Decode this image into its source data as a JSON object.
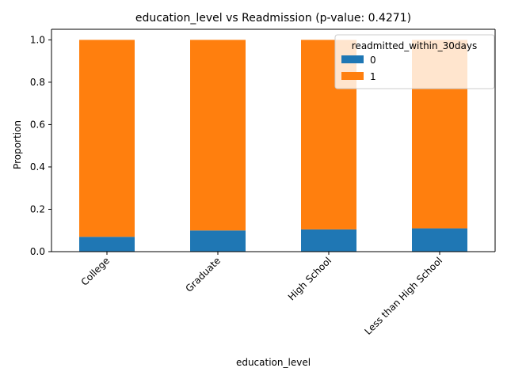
{
  "chart_data": {
    "type": "bar",
    "stacked": true,
    "title": "education_level vs Readmission (p-value: 0.4271)",
    "xlabel": "education_level",
    "ylabel": "Proportion",
    "categories": [
      "College",
      "Graduate",
      "High School",
      "Less than High School"
    ],
    "series": [
      {
        "name": "0",
        "values": [
          0.07,
          0.1,
          0.105,
          0.11
        ],
        "color": "#1f77b4"
      },
      {
        "name": "1",
        "values": [
          0.93,
          0.9,
          0.895,
          0.89
        ],
        "color": "#ff7f0e"
      }
    ],
    "ylim": [
      0,
      1.05
    ],
    "yticks": [
      0.0,
      0.2,
      0.4,
      0.6,
      0.8,
      1.0
    ],
    "ytick_labels": [
      "0.0",
      "0.2",
      "0.4",
      "0.6",
      "0.8",
      "1.0"
    ],
    "grid": false,
    "legend": {
      "title": "readmitted_within_30days",
      "placement": "top-right",
      "entries": [
        "0",
        "1"
      ]
    }
  }
}
